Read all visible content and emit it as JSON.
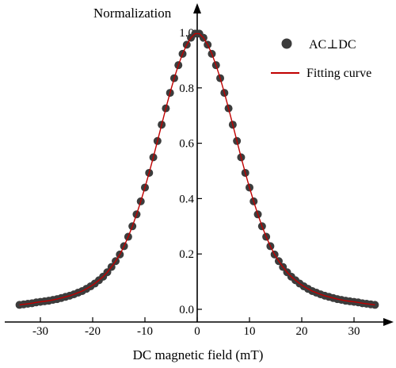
{
  "chart_data": {
    "type": "scatter",
    "title": "",
    "xlabel": "DC magnetic field (mT)",
    "ylabel": "Normalization",
    "xlim": [
      -35,
      35
    ],
    "ylim": [
      0,
      1.0
    ],
    "x_ticks": [
      -30,
      -20,
      -10,
      0,
      10,
      20,
      30
    ],
    "y_ticks": [
      0.0,
      0.2,
      0.4,
      0.6,
      0.8,
      1.0
    ],
    "x_tick_labels": [
      "-30",
      "-20",
      "-10",
      "0",
      "10",
      "20",
      "30"
    ],
    "y_tick_labels": [
      "0.0",
      "0.2",
      "0.4",
      "0.6",
      "0.8",
      "1.0"
    ],
    "grid": false,
    "legend_position": "top-right",
    "series": [
      {
        "name": "AC⊥DC",
        "kind": "scatter",
        "color": "#3c3c3c",
        "x": [
          -34.0,
          -33.2,
          -32.4,
          -31.6,
          -30.8,
          -30.0,
          -29.2,
          -28.4,
          -27.6,
          -26.8,
          -26.0,
          -25.2,
          -24.4,
          -23.6,
          -22.8,
          -22.0,
          -21.2,
          -20.4,
          -19.6,
          -18.8,
          -18.0,
          -17.2,
          -16.4,
          -15.6,
          -14.8,
          -14.0,
          -13.2,
          -12.4,
          -11.6,
          -10.8,
          -10.0,
          -9.2,
          -8.4,
          -7.6,
          -6.8,
          -6.0,
          -5.2,
          -4.4,
          -3.6,
          -2.8,
          -2.0,
          -1.2,
          -0.4,
          0.4,
          1.2,
          2.0,
          2.8,
          3.6,
          4.4,
          5.2,
          6.0,
          6.8,
          7.6,
          8.4,
          9.2,
          10.0,
          10.8,
          11.6,
          12.4,
          13.2,
          14.0,
          14.8,
          15.6,
          16.4,
          17.2,
          18.0,
          18.8,
          19.6,
          20.4,
          21.2,
          22.0,
          22.8,
          23.6,
          24.4,
          25.2,
          26.0,
          26.8,
          27.6,
          28.4,
          29.2,
          30.0,
          30.8,
          31.6,
          32.4,
          33.2,
          34.0
        ],
        "y": [
          0.016,
          0.018,
          0.02,
          0.022,
          0.025,
          0.027,
          0.029,
          0.031,
          0.034,
          0.037,
          0.041,
          0.045,
          0.049,
          0.054,
          0.06,
          0.066,
          0.074,
          0.083,
          0.093,
          0.105,
          0.118,
          0.134,
          0.153,
          0.174,
          0.198,
          0.228,
          0.262,
          0.3,
          0.343,
          0.39,
          0.44,
          0.493,
          0.549,
          0.608,
          0.667,
          0.726,
          0.782,
          0.835,
          0.882,
          0.923,
          0.956,
          0.981,
          0.996,
          0.996,
          0.981,
          0.956,
          0.923,
          0.882,
          0.835,
          0.782,
          0.726,
          0.667,
          0.608,
          0.549,
          0.493,
          0.44,
          0.39,
          0.343,
          0.3,
          0.262,
          0.228,
          0.198,
          0.174,
          0.153,
          0.134,
          0.118,
          0.105,
          0.093,
          0.083,
          0.074,
          0.066,
          0.06,
          0.054,
          0.049,
          0.045,
          0.041,
          0.037,
          0.034,
          0.031,
          0.029,
          0.027,
          0.025,
          0.022,
          0.02,
          0.018,
          0.016
        ]
      },
      {
        "name": "Fitting curve",
        "kind": "line",
        "color": "#c00000",
        "x": [
          -34.0,
          -33.2,
          -32.4,
          -31.6,
          -30.8,
          -30.0,
          -29.2,
          -28.4,
          -27.6,
          -26.8,
          -26.0,
          -25.2,
          -24.4,
          -23.6,
          -22.8,
          -22.0,
          -21.2,
          -20.4,
          -19.6,
          -18.8,
          -18.0,
          -17.2,
          -16.4,
          -15.6,
          -14.8,
          -14.0,
          -13.2,
          -12.4,
          -11.6,
          -10.8,
          -10.0,
          -9.2,
          -8.4,
          -7.6,
          -6.8,
          -6.0,
          -5.2,
          -4.4,
          -3.6,
          -2.8,
          -2.0,
          -1.2,
          -0.4,
          0.4,
          1.2,
          2.0,
          2.8,
          3.6,
          4.4,
          5.2,
          6.0,
          6.8,
          7.6,
          8.4,
          9.2,
          10.0,
          10.8,
          11.6,
          12.4,
          13.2,
          14.0,
          14.8,
          15.6,
          16.4,
          17.2,
          18.0,
          18.8,
          19.6,
          20.4,
          21.2,
          22.0,
          22.8,
          23.6,
          24.4,
          25.2,
          26.0,
          26.8,
          27.6,
          28.4,
          29.2,
          30.0,
          30.8,
          31.6,
          32.4,
          33.2,
          34.0
        ],
        "y": [
          0.016,
          0.018,
          0.02,
          0.022,
          0.025,
          0.027,
          0.029,
          0.031,
          0.034,
          0.037,
          0.041,
          0.045,
          0.049,
          0.054,
          0.06,
          0.066,
          0.074,
          0.083,
          0.093,
          0.105,
          0.118,
          0.134,
          0.153,
          0.174,
          0.198,
          0.228,
          0.262,
          0.3,
          0.343,
          0.39,
          0.44,
          0.493,
          0.549,
          0.608,
          0.667,
          0.726,
          0.782,
          0.835,
          0.882,
          0.923,
          0.956,
          0.981,
          0.996,
          0.996,
          0.981,
          0.956,
          0.923,
          0.882,
          0.835,
          0.782,
          0.726,
          0.667,
          0.608,
          0.549,
          0.493,
          0.44,
          0.39,
          0.343,
          0.3,
          0.262,
          0.228,
          0.198,
          0.174,
          0.153,
          0.134,
          0.118,
          0.105,
          0.093,
          0.083,
          0.074,
          0.066,
          0.06,
          0.054,
          0.049,
          0.045,
          0.041,
          0.037,
          0.034,
          0.031,
          0.029,
          0.027,
          0.025,
          0.022,
          0.02,
          0.018,
          0.016
        ]
      }
    ]
  }
}
